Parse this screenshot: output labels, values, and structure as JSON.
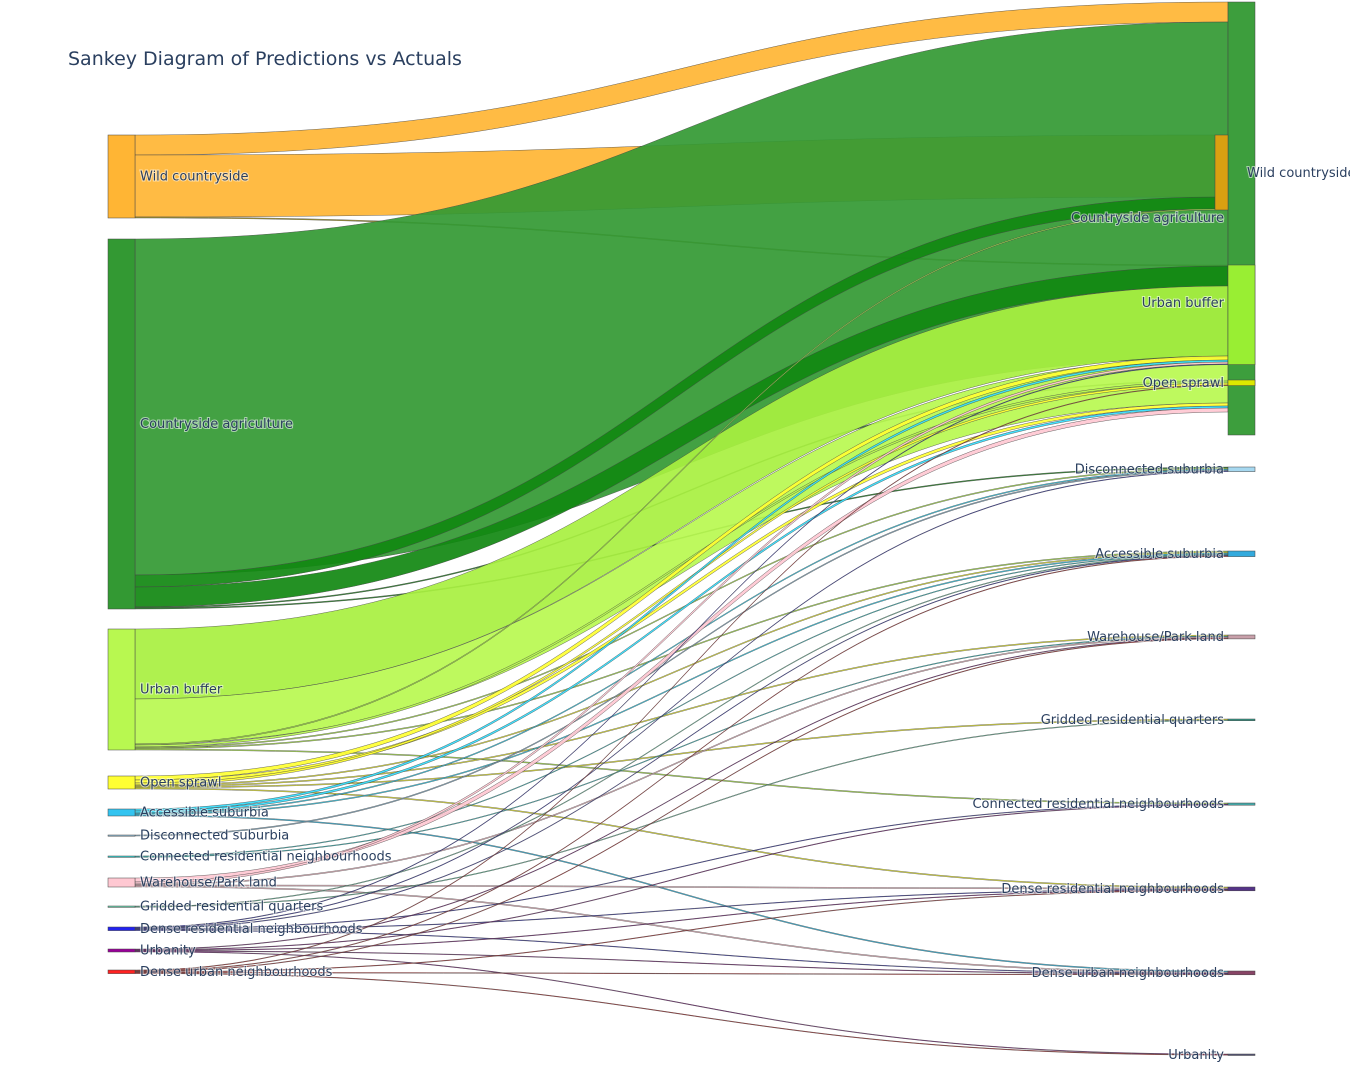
{
  "chart_data": {
    "type": "sankey",
    "title": "Sankey Diagram of Predictions vs Actuals",
    "sources": [
      {
        "label": "Wild countryside",
        "color": "#FFB534"
      },
      {
        "label": "Countryside agriculture",
        "color": "#339933"
      },
      {
        "label": "Urban buffer",
        "color": "#B8F850"
      },
      {
        "label": "Open sprawl",
        "color": "#FFFF33"
      },
      {
        "label": "Accessible suburbia",
        "color": "#33C4F0"
      },
      {
        "label": "Disconnected suburbia",
        "color": "#8FB8D0"
      },
      {
        "label": "Connected residential neighbourhoods",
        "color": "#33CCCC"
      },
      {
        "label": "Warehouse/Park land",
        "color": "#FFC8D2"
      },
      {
        "label": "Gridded residential quarters",
        "color": "#66CCAA"
      },
      {
        "label": "Dense residential neighbourhoods",
        "color": "#2222EE"
      },
      {
        "label": "Urbanity",
        "color": "#990099"
      },
      {
        "label": "Dense urban neighbourhoods",
        "color": "#FF2222"
      }
    ],
    "targets": [
      {
        "label": "Wild countryside",
        "color": "#339933"
      },
      {
        "label": "Countryside agriculture",
        "color": "#D9A011"
      },
      {
        "label": "Urban buffer",
        "color": "#99EE33"
      },
      {
        "label": "Open sprawl",
        "color": "#DDE800"
      },
      {
        "label": "Disconnected suburbia",
        "color": "#A6D8F0"
      },
      {
        "label": "Accessible suburbia",
        "color": "#33AADD"
      },
      {
        "label": "Warehouse/Park land",
        "color": "#C8A0AA"
      },
      {
        "label": "Gridded residential quarters",
        "color": "#339988"
      },
      {
        "label": "Connected residential neighbourhoods",
        "color": "#44AAAA"
      },
      {
        "label": "Dense residential neighbourhoods",
        "color": "#553388"
      },
      {
        "label": "Dense urban neighbourhoods",
        "color": "#884466"
      },
      {
        "label": "Urbanity",
        "color": "#555577"
      }
    ],
    "links": [
      {
        "source": 0,
        "target": 0,
        "value": 20,
        "color": "#FFB534"
      },
      {
        "source": 0,
        "target": 1,
        "value": 62,
        "color": "#FFB534"
      },
      {
        "source": 0,
        "target": 2,
        "value": 1,
        "color": "#B0A020"
      },
      {
        "source": 1,
        "target": 0,
        "value": 336,
        "color": "#339933"
      },
      {
        "source": 1,
        "target": 1,
        "value": 12,
        "color": "#118811"
      },
      {
        "source": 1,
        "target": 2,
        "value": 20,
        "color": "#118811"
      },
      {
        "source": 1,
        "target": 3,
        "value": 1,
        "color": "#228822"
      },
      {
        "source": 1,
        "target": 4,
        "value": 1,
        "color": "#228822"
      },
      {
        "source": 2,
        "target": 2,
        "value": 70,
        "color": "#A8F040"
      },
      {
        "source": 2,
        "target": 0,
        "value": 45,
        "color": "#B8F850"
      },
      {
        "source": 2,
        "target": 1,
        "value": 1,
        "color": "#B8F850"
      },
      {
        "source": 2,
        "target": 3,
        "value": 2,
        "color": "#B8F850"
      },
      {
        "source": 2,
        "target": 4,
        "value": 1,
        "color": "#B8F850"
      },
      {
        "source": 2,
        "target": 5,
        "value": 1,
        "color": "#B8F850"
      },
      {
        "source": 2,
        "target": 8,
        "value": 1,
        "color": "#B8F850"
      },
      {
        "source": 3,
        "target": 2,
        "value": 4,
        "color": "#FFFF33"
      },
      {
        "source": 3,
        "target": 0,
        "value": 3,
        "color": "#FFFF33"
      },
      {
        "source": 3,
        "target": 3,
        "value": 2,
        "color": "#FFFF33"
      },
      {
        "source": 3,
        "target": 5,
        "value": 1,
        "color": "#FFFF33"
      },
      {
        "source": 3,
        "target": 6,
        "value": 1,
        "color": "#FFFF33"
      },
      {
        "source": 3,
        "target": 7,
        "value": 1,
        "color": "#FFFF33"
      },
      {
        "source": 3,
        "target": 9,
        "value": 1,
        "color": "#FFFF33"
      },
      {
        "source": 4,
        "target": 2,
        "value": 2,
        "color": "#33E0FF"
      },
      {
        "source": 4,
        "target": 0,
        "value": 2,
        "color": "#33E0FF"
      },
      {
        "source": 4,
        "target": 4,
        "value": 1,
        "color": "#33E0FF"
      },
      {
        "source": 4,
        "target": 5,
        "value": 1,
        "color": "#33E0FF"
      },
      {
        "source": 4,
        "target": 10,
        "value": 1,
        "color": "#33C4F0"
      },
      {
        "source": 5,
        "target": 4,
        "value": 1,
        "color": "#8FB8D0"
      },
      {
        "source": 6,
        "target": 5,
        "value": 0.7,
        "color": "#33FFFF"
      },
      {
        "source": 6,
        "target": 6,
        "value": 0.7,
        "color": "#33FFFF"
      },
      {
        "source": 7,
        "target": 0,
        "value": 4,
        "color": "#FFC8D2"
      },
      {
        "source": 7,
        "target": 2,
        "value": 2,
        "color": "#FFC8D2"
      },
      {
        "source": 7,
        "target": 6,
        "value": 1,
        "color": "#FFC8D2"
      },
      {
        "source": 7,
        "target": 9,
        "value": 1,
        "color": "#FFC8D2"
      },
      {
        "source": 7,
        "target": 10,
        "value": 1,
        "color": "#FFC8D2"
      },
      {
        "source": 8,
        "target": 7,
        "value": 0.7,
        "color": "#80FFCC"
      },
      {
        "source": 8,
        "target": 5,
        "value": 0.7,
        "color": "#80FFCC"
      },
      {
        "source": 9,
        "target": 2,
        "value": 0.6,
        "color": "#2222EE"
      },
      {
        "source": 9,
        "target": 4,
        "value": 0.6,
        "color": "#2222EE"
      },
      {
        "source": 9,
        "target": 5,
        "value": 0.6,
        "color": "#2222EE"
      },
      {
        "source": 9,
        "target": 8,
        "value": 0.6,
        "color": "#2222EE"
      },
      {
        "source": 9,
        "target": 9,
        "value": 0.6,
        "color": "#2222EE"
      },
      {
        "source": 9,
        "target": 10,
        "value": 0.6,
        "color": "#2222EE"
      },
      {
        "source": 10,
        "target": 6,
        "value": 0.6,
        "color": "#990099"
      },
      {
        "source": 10,
        "target": 8,
        "value": 0.6,
        "color": "#990099"
      },
      {
        "source": 10,
        "target": 9,
        "value": 0.6,
        "color": "#990099"
      },
      {
        "source": 10,
        "target": 10,
        "value": 0.6,
        "color": "#990099"
      },
      {
        "source": 10,
        "target": 11,
        "value": 0.6,
        "color": "#990099"
      },
      {
        "source": 11,
        "target": 3,
        "value": 0.6,
        "color": "#FF2222"
      },
      {
        "source": 11,
        "target": 5,
        "value": 0.6,
        "color": "#FF2222"
      },
      {
        "source": 11,
        "target": 6,
        "value": 0.6,
        "color": "#FF2222"
      },
      {
        "source": 11,
        "target": 9,
        "value": 0.6,
        "color": "#FF2222"
      },
      {
        "source": 11,
        "target": 10,
        "value": 0.6,
        "color": "#FF2222"
      },
      {
        "source": 11,
        "target": 11,
        "value": 0.6,
        "color": "#FF2222"
      }
    ]
  }
}
